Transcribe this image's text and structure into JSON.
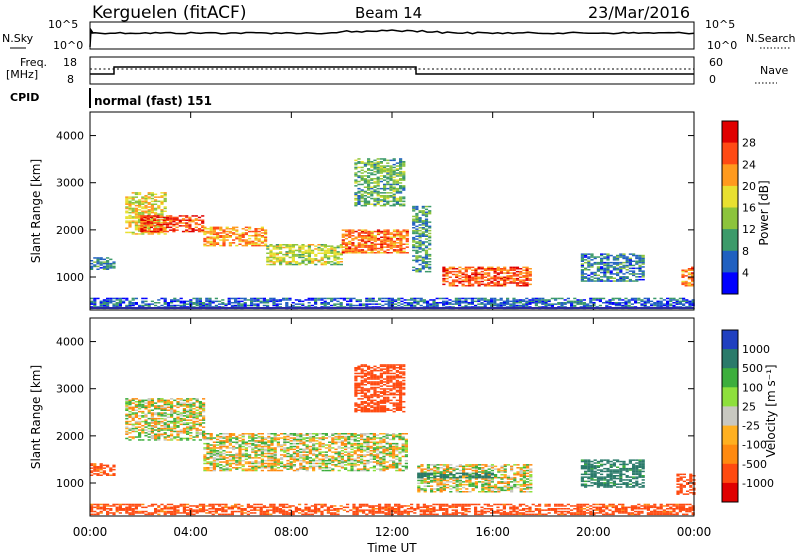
{
  "header": {
    "station": "Kerguelen (fitACF)",
    "beam": "Beam 14",
    "date": "23/Mar/2016"
  },
  "status_panels": {
    "nsky_label": "N.Sky",
    "nsky_ticks": [
      "10^5",
      "10^0"
    ],
    "nsearch_label": "N.Search",
    "nsearch_ticks": [
      "10^5",
      "10^0"
    ],
    "freq_label_1": "Freq.",
    "freq_label_2": "[MHz]",
    "freq_ticks": [
      "18",
      "8"
    ],
    "nave_label": "Nave",
    "nave_ticks": [
      "60",
      "0"
    ],
    "cpid_label": "CPID",
    "cpid_value": "normal (fast) 151"
  },
  "chart_data": [
    {
      "type": "heatmap",
      "name_key": "power",
      "ylabel": "Slant Range [km]",
      "yticks": [
        "4000",
        "3000",
        "2000",
        "1000"
      ],
      "ylim": [
        300,
        4500
      ],
      "xlim_hours": [
        0,
        24
      ],
      "colorbar_label": "Power [dB]",
      "colorbar_ticks": [
        "28",
        "24",
        "20",
        "16",
        "12",
        "8",
        "4"
      ],
      "colormap": [
        "#0000ff",
        "#2060c0",
        "#3c9a6a",
        "#8cc43c",
        "#e8e030",
        "#ff9a1e",
        "#ff4a14",
        "#e00000"
      ],
      "bands": [
        {
          "hours": [
            0.0,
            0.9
          ],
          "range_km": [
            1150,
            1400
          ],
          "power_db": 8
        },
        {
          "hours": [
            1.4,
            3.0
          ],
          "range_km": [
            1900,
            2800
          ],
          "power_db": 18
        },
        {
          "hours": [
            2.0,
            4.5
          ],
          "range_km": [
            1950,
            2300
          ],
          "power_db": 27
        },
        {
          "hours": [
            4.5,
            7.0
          ],
          "range_km": [
            1650,
            2050
          ],
          "power_db": 22
        },
        {
          "hours": [
            7.0,
            10.0
          ],
          "range_km": [
            1250,
            1700
          ],
          "power_db": 16
        },
        {
          "hours": [
            10.0,
            12.6
          ],
          "range_km": [
            1500,
            2000
          ],
          "power_db": 24
        },
        {
          "hours": [
            10.5,
            12.5
          ],
          "range_km": [
            2500,
            3500
          ],
          "power_db": 12
        },
        {
          "hours": [
            12.8,
            13.5
          ],
          "range_km": [
            1100,
            2500
          ],
          "power_db": 10
        },
        {
          "hours": [
            14.0,
            17.5
          ],
          "range_km": [
            800,
            1200
          ],
          "power_db": 26
        },
        {
          "hours": [
            19.5,
            22.0
          ],
          "range_km": [
            900,
            1500
          ],
          "power_db": 8
        },
        {
          "hours": [
            23.5,
            24.0
          ],
          "range_km": [
            800,
            1200
          ],
          "power_db": 24
        },
        {
          "hours": [
            0.0,
            24.0
          ],
          "range_km": [
            320,
            550
          ],
          "power_db": 6
        }
      ]
    },
    {
      "type": "heatmap",
      "name_key": "velocity",
      "ylabel": "Slant Range [km]",
      "yticks": [
        "4000",
        "3000",
        "2000",
        "1000"
      ],
      "ylim": [
        300,
        4500
      ],
      "xlim_hours": [
        0,
        24
      ],
      "colorbar_label": "Velocity [m s⁻¹]",
      "colorbar_ticks": [
        "1000",
        "500",
        "100",
        "25",
        "-25",
        "-100",
        "-500",
        "-1000"
      ],
      "colormap": [
        "#2040c0",
        "#2a7a6a",
        "#3cae3c",
        "#8ee03c",
        "#c8c8c0",
        "#ffb020",
        "#ff8a10",
        "#ff4a10",
        "#e00000"
      ],
      "bands": [
        {
          "hours": [
            0.0,
            0.9
          ],
          "range_km": [
            1150,
            1400
          ],
          "velocity": -150
        },
        {
          "hours": [
            1.4,
            4.5
          ],
          "range_km": [
            1900,
            2800
          ],
          "velocity": 0
        },
        {
          "hours": [
            4.5,
            12.6
          ],
          "range_km": [
            1250,
            2050
          ],
          "velocity": 0
        },
        {
          "hours": [
            10.5,
            12.5
          ],
          "range_km": [
            2500,
            3500
          ],
          "velocity": -200
        },
        {
          "hours": [
            13.0,
            17.5
          ],
          "range_km": [
            800,
            1400
          ],
          "velocity": 0
        },
        {
          "hours": [
            13.0,
            16.0
          ],
          "range_km": [
            1100,
            1200
          ],
          "velocity": 150
        },
        {
          "hours": [
            19.5,
            22.0
          ],
          "range_km": [
            900,
            1500
          ],
          "velocity": 150
        },
        {
          "hours": [
            23.3,
            24.0
          ],
          "range_km": [
            750,
            1200
          ],
          "velocity": -200
        },
        {
          "hours": [
            0.0,
            24.0
          ],
          "range_km": [
            320,
            550
          ],
          "velocity": -150
        }
      ]
    }
  ],
  "time_axis": {
    "ticks": [
      "00:00",
      "04:00",
      "08:00",
      "12:00",
      "16:00",
      "20:00",
      "00:00"
    ],
    "label": "Time UT"
  }
}
